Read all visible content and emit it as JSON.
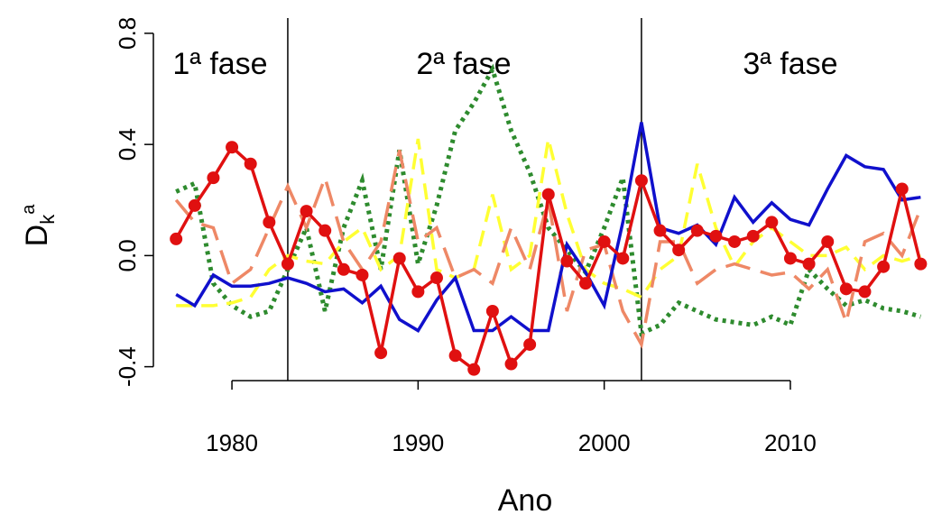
{
  "chart_data": {
    "type": "line",
    "x_label": "Ano",
    "y_label": {
      "main": "D",
      "sub": "k",
      "sup": "a"
    },
    "annotations": [
      "1ª fase",
      "2ª fase",
      "3ª fase"
    ],
    "vlines": [
      1983,
      2002
    ],
    "x": [
      1977,
      1978,
      1979,
      1980,
      1981,
      1982,
      1983,
      1984,
      1985,
      1986,
      1987,
      1988,
      1989,
      1990,
      1991,
      1992,
      1993,
      1994,
      1995,
      1996,
      1997,
      1998,
      1999,
      2000,
      2001,
      2002,
      2003,
      2004,
      2005,
      2006,
      2007,
      2008,
      2009,
      2010,
      2011,
      2012,
      2013,
      2014,
      2015,
      2016,
      2017
    ],
    "xlim": [
      1975.78,
      2018.0
    ],
    "xticks": [
      1980,
      1990,
      2000,
      2010
    ],
    "ylim": [
      -0.45,
      0.855
    ],
    "yticks": [
      -0.4,
      {
        "value": 0,
        "label": "0.0"
      },
      0.4,
      0.8
    ],
    "series": [
      {
        "color": "#2e8b2e",
        "style": "dotted",
        "values": [
          0.23,
          0.26,
          -0.1,
          -0.18,
          -0.22,
          -0.2,
          -0.05,
          0.1,
          -0.2,
          0.1,
          0.27,
          -0.05,
          0.38,
          -0.03,
          0.18,
          0.45,
          0.55,
          0.67,
          0.45,
          0.3,
          0.1,
          0.02,
          -0.06,
          0.1,
          0.28,
          -0.28,
          -0.25,
          -0.17,
          -0.2,
          -0.23,
          -0.24,
          -0.25,
          -0.22,
          -0.25,
          -0.05,
          -0.12,
          -0.18,
          -0.16,
          -0.19,
          -0.2,
          -0.22
        ]
      },
      {
        "color": "#ffff33",
        "style": "dashed",
        "values": [
          -0.18,
          -0.18,
          -0.18,
          -0.17,
          -0.15,
          -0.05,
          0.0,
          -0.02,
          -0.03,
          0.05,
          0.1,
          -0.05,
          0.0,
          0.42,
          -0.05,
          -0.08,
          -0.05,
          0.22,
          -0.05,
          0.0,
          0.42,
          0.15,
          -0.05,
          -0.1,
          -0.12,
          -0.15,
          -0.05,
          0.0,
          0.33,
          0.1,
          -0.04,
          0.05,
          0.1,
          0.05,
          0.0,
          0.0,
          0.03,
          -0.05,
          0.0,
          -0.02,
          0.0
        ]
      },
      {
        "color": "#ee8866",
        "style": "longdash",
        "values": [
          0.2,
          0.12,
          0.1,
          -0.1,
          -0.05,
          0.1,
          0.25,
          0.1,
          0.28,
          0.05,
          -0.05,
          0.05,
          0.38,
          0.05,
          0.1,
          -0.08,
          -0.05,
          -0.1,
          0.1,
          -0.05,
          0.2,
          -0.2,
          0.02,
          0.04,
          -0.2,
          -0.32,
          0.05,
          0.05,
          -0.1,
          -0.05,
          -0.03,
          -0.05,
          -0.07,
          -0.06,
          -0.12,
          -0.05,
          -0.24,
          0.05,
          0.08,
          0.0,
          0.17
        ]
      },
      {
        "color": "#1010cc",
        "style": "solid",
        "values": [
          -0.14,
          -0.18,
          -0.07,
          -0.11,
          -0.11,
          -0.1,
          -0.08,
          -0.1,
          -0.13,
          -0.12,
          -0.17,
          -0.11,
          -0.23,
          -0.27,
          -0.16,
          -0.08,
          -0.27,
          -0.27,
          -0.22,
          -0.27,
          -0.27,
          0.04,
          -0.06,
          -0.18,
          0.12,
          0.48,
          0.1,
          0.08,
          0.11,
          0.04,
          0.21,
          0.12,
          0.19,
          0.13,
          0.11,
          0.24,
          0.36,
          0.32,
          0.31,
          0.2,
          0.21
        ]
      },
      {
        "color": "#e01010",
        "style": "solid",
        "markers": true,
        "values": [
          0.06,
          0.18,
          0.28,
          0.39,
          0.33,
          0.12,
          -0.03,
          0.16,
          0.09,
          -0.05,
          -0.07,
          -0.35,
          -0.01,
          -0.13,
          -0.08,
          -0.36,
          -0.41,
          -0.2,
          -0.39,
          -0.32,
          0.22,
          -0.02,
          -0.1,
          0.05,
          -0.01,
          0.27,
          0.09,
          0.02,
          0.09,
          0.07,
          0.05,
          0.07,
          0.12,
          -0.01,
          -0.03,
          0.05,
          -0.12,
          -0.13,
          -0.04,
          0.24,
          -0.03
        ]
      }
    ]
  }
}
